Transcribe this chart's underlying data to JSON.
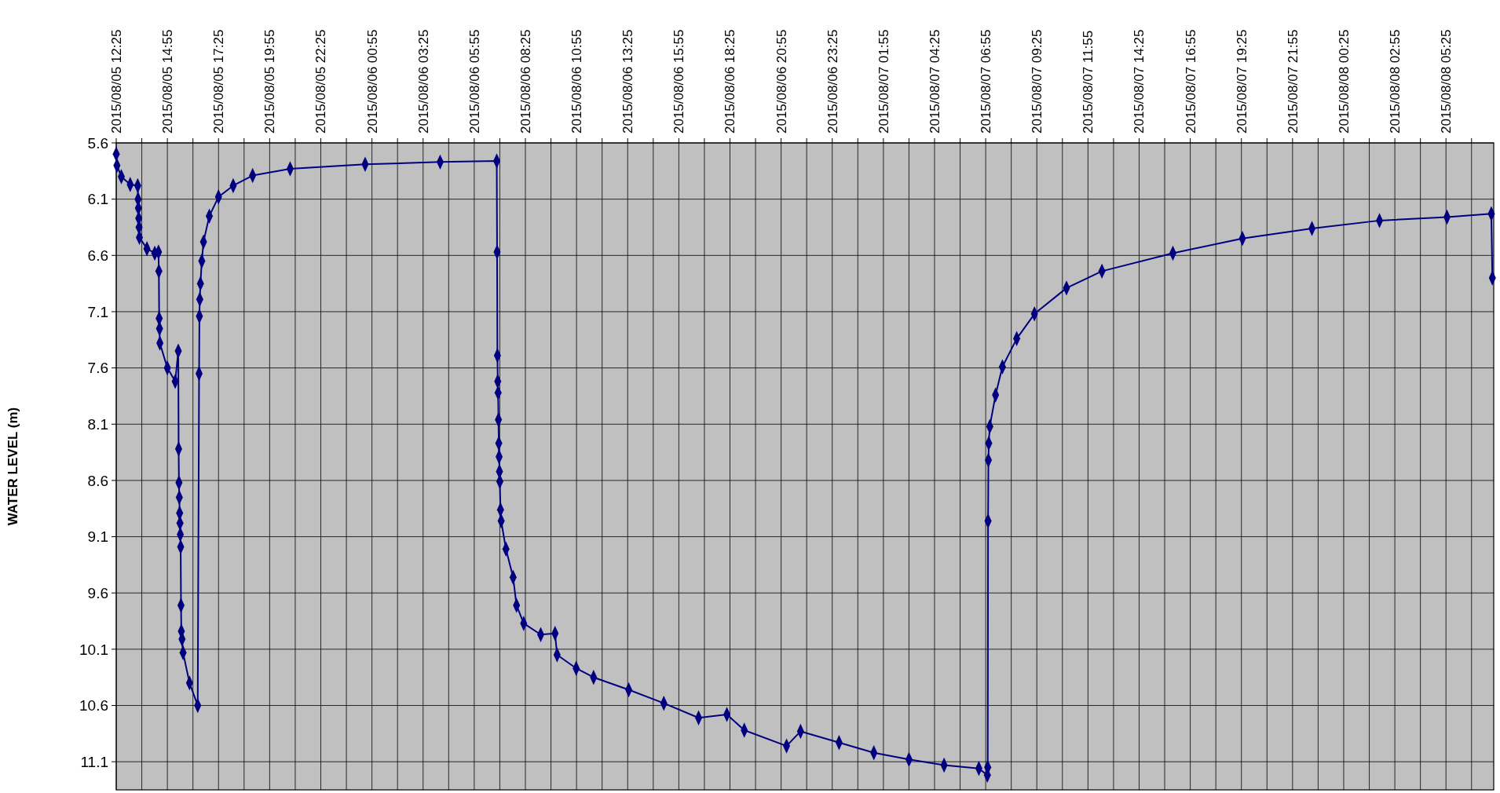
{
  "chart_data": {
    "type": "line",
    "ylabel": "WATER LEVEL (m)",
    "grid": true,
    "marker": "diamond",
    "line_style": "solid",
    "xlim": [
      "2015-08-05T12:25",
      "2015-08-08T07:45"
    ],
    "ylim": [
      11.35,
      5.6
    ],
    "yticks": [
      5.6,
      6.1,
      6.6,
      7.1,
      7.6,
      8.1,
      8.6,
      9.1,
      9.6,
      10.1,
      10.6,
      11.1
    ],
    "xticks": [
      {
        "value": "2015-08-05T12:25",
        "label": "2015/08/05 12:25"
      },
      {
        "value": "2015-08-05T13:40",
        "label": null
      },
      {
        "value": "2015-08-05T14:55",
        "label": "2015/08/05 14:55"
      },
      {
        "value": "2015-08-05T16:10",
        "label": null
      },
      {
        "value": "2015-08-05T17:25",
        "label": "2015/08/05 17:25"
      },
      {
        "value": "2015-08-05T18:40",
        "label": null
      },
      {
        "value": "2015-08-05T19:55",
        "label": "2015/08/05 19:55"
      },
      {
        "value": "2015-08-05T21:10",
        "label": null
      },
      {
        "value": "2015-08-05T22:25",
        "label": "2015/08/05 22:25"
      },
      {
        "value": "2015-08-05T23:40",
        "label": null
      },
      {
        "value": "2015-08-06T00:55",
        "label": "2015/08/06 00:55"
      },
      {
        "value": "2015-08-06T02:10",
        "label": null
      },
      {
        "value": "2015-08-06T03:25",
        "label": "2015/08/06 03:25"
      },
      {
        "value": "2015-08-06T04:40",
        "label": null
      },
      {
        "value": "2015-08-06T05:55",
        "label": "2015/08/06 05:55"
      },
      {
        "value": "2015-08-06T07:10",
        "label": null
      },
      {
        "value": "2015-08-06T08:25",
        "label": "2015/08/06 08:25"
      },
      {
        "value": "2015-08-06T09:40",
        "label": null
      },
      {
        "value": "2015-08-06T10:55",
        "label": "2015/08/06 10:55"
      },
      {
        "value": "2015-08-06T12:10",
        "label": null
      },
      {
        "value": "2015-08-06T13:25",
        "label": "2015/08/06 13:25"
      },
      {
        "value": "2015-08-06T14:40",
        "label": null
      },
      {
        "value": "2015-08-06T15:55",
        "label": "2015/08/06 15:55"
      },
      {
        "value": "2015-08-06T17:10",
        "label": null
      },
      {
        "value": "2015-08-06T18:25",
        "label": "2015/08/06 18:25"
      },
      {
        "value": "2015-08-06T19:40",
        "label": null
      },
      {
        "value": "2015-08-06T20:55",
        "label": "2015/08/06 20:55"
      },
      {
        "value": "2015-08-06T22:10",
        "label": null
      },
      {
        "value": "2015-08-06T23:25",
        "label": "2015/08/06 23:25"
      },
      {
        "value": "2015-08-07T00:40",
        "label": null
      },
      {
        "value": "2015-08-07T01:55",
        "label": "2015/08/07 01:55"
      },
      {
        "value": "2015-08-07T03:10",
        "label": null
      },
      {
        "value": "2015-08-07T04:25",
        "label": "2015/08/07 04:25"
      },
      {
        "value": "2015-08-07T05:40",
        "label": null
      },
      {
        "value": "2015-08-07T06:55",
        "label": "2015/08/07 06:55"
      },
      {
        "value": "2015-08-07T08:10",
        "label": null
      },
      {
        "value": "2015-08-07T09:25",
        "label": "2015/08/07 09:25"
      },
      {
        "value": "2015-08-07T10:40",
        "label": null
      },
      {
        "value": "2015-08-07T11:55",
        "label": "2015/08/07 11:55"
      },
      {
        "value": "2015-08-07T13:10",
        "label": null
      },
      {
        "value": "2015-08-07T14:25",
        "label": "2015/08/07 14:25"
      },
      {
        "value": "2015-08-07T15:40",
        "label": null
      },
      {
        "value": "2015-08-07T16:55",
        "label": "2015/08/07 16:55"
      },
      {
        "value": "2015-08-07T18:10",
        "label": null
      },
      {
        "value": "2015-08-07T19:25",
        "label": "2015/08/07 19:25"
      },
      {
        "value": "2015-08-07T20:40",
        "label": null
      },
      {
        "value": "2015-08-07T21:55",
        "label": "2015/08/07 21:55"
      },
      {
        "value": "2015-08-07T23:10",
        "label": null
      },
      {
        "value": "2015-08-08T00:25",
        "label": "2015/08/08 00:25"
      },
      {
        "value": "2015-08-08T01:40",
        "label": null
      },
      {
        "value": "2015-08-08T02:55",
        "label": "2015/08/08 02:55"
      },
      {
        "value": "2015-08-08T04:10",
        "label": null
      },
      {
        "value": "2015-08-08T05:25",
        "label": "2015/08/08 05:25"
      },
      {
        "value": "2015-08-08T06:40",
        "label": null
      }
    ],
    "series": [
      {
        "color": "#000080",
        "x": [
          "2015-08-05T12:25",
          "2015-08-05T12:27",
          "2015-08-05T12:40",
          "2015-08-05T13:06",
          "2015-08-05T13:28",
          "2015-08-05T13:29",
          "2015-08-05T13:30",
          "2015-08-05T13:31",
          "2015-08-05T13:32",
          "2015-08-05T13:33",
          "2015-08-05T13:55",
          "2015-08-05T14:18",
          "2015-08-05T14:29",
          "2015-08-05T14:30",
          "2015-08-05T14:31",
          "2015-08-05T14:32",
          "2015-08-05T14:33",
          "2015-08-05T14:55",
          "2015-08-05T15:18",
          "2015-08-05T15:27",
          "2015-08-05T15:28",
          "2015-08-05T15:29",
          "2015-08-05T15:30",
          "2015-08-05T15:31",
          "2015-08-05T15:32",
          "2015-08-05T15:33",
          "2015-08-05T15:34",
          "2015-08-05T15:35",
          "2015-08-05T15:36",
          "2015-08-05T15:38",
          "2015-08-05T15:41",
          "2015-08-05T16:00",
          "2015-08-05T16:24",
          "2015-08-05T16:28",
          "2015-08-05T16:29",
          "2015-08-05T16:30",
          "2015-08-05T16:32",
          "2015-08-05T16:36",
          "2015-08-05T16:41",
          "2015-08-05T16:58",
          "2015-08-05T17:25",
          "2015-08-05T18:08",
          "2015-08-05T19:05",
          "2015-08-05T20:55",
          "2015-08-06T00:35",
          "2015-08-06T04:15",
          "2015-08-06T07:01",
          "2015-08-06T07:02",
          "2015-08-06T07:03",
          "2015-08-06T07:04",
          "2015-08-06T07:05",
          "2015-08-06T07:06",
          "2015-08-06T07:07",
          "2015-08-06T07:08",
          "2015-08-06T07:09",
          "2015-08-06T07:10",
          "2015-08-06T07:12",
          "2015-08-06T07:14",
          "2015-08-06T07:28",
          "2015-08-06T07:49",
          "2015-08-06T07:59",
          "2015-08-06T08:20",
          "2015-08-06T09:10",
          "2015-08-06T09:52",
          "2015-08-06T09:58",
          "2015-08-06T10:54",
          "2015-08-06T11:45",
          "2015-08-06T13:28",
          "2015-08-06T15:11",
          "2015-08-06T16:53",
          "2015-08-06T18:16",
          "2015-08-06T19:07",
          "2015-08-06T21:11",
          "2015-08-06T21:52",
          "2015-08-06T23:45",
          "2015-08-07T01:27",
          "2015-08-07T03:10",
          "2015-08-07T04:53",
          "2015-08-07T06:35",
          "2015-08-07T07:00",
          "2015-08-07T07:01",
          "2015-08-07T07:02",
          "2015-08-07T07:03",
          "2015-08-07T07:04",
          "2015-08-07T07:07",
          "2015-08-07T07:24",
          "2015-08-07T07:44",
          "2015-08-07T08:26",
          "2015-08-07T09:18",
          "2015-08-07T10:52",
          "2015-08-07T12:36",
          "2015-08-07T16:04",
          "2015-08-07T19:28",
          "2015-08-07T22:52",
          "2015-08-08T02:10",
          "2015-08-08T05:28",
          "2015-08-08T07:38",
          "2015-08-08T07:41"
        ],
        "values": [
          5.7,
          5.8,
          5.9,
          5.97,
          5.98,
          6.1,
          6.18,
          6.27,
          6.35,
          6.44,
          6.54,
          6.58,
          6.57,
          6.74,
          7.16,
          7.25,
          7.38,
          7.6,
          7.72,
          7.45,
          8.32,
          8.62,
          8.75,
          8.89,
          8.98,
          9.08,
          9.19,
          9.71,
          9.94,
          10.01,
          10.13,
          10.4,
          10.6,
          7.65,
          7.14,
          6.99,
          6.85,
          6.65,
          6.48,
          6.25,
          6.08,
          5.98,
          5.89,
          5.83,
          5.79,
          5.77,
          5.76,
          6.57,
          7.49,
          7.72,
          7.82,
          8.06,
          8.27,
          8.39,
          8.52,
          8.61,
          8.86,
          8.96,
          9.21,
          9.46,
          9.71,
          9.87,
          9.97,
          9.96,
          10.15,
          10.27,
          10.35,
          10.46,
          10.58,
          10.71,
          10.68,
          10.82,
          10.96,
          10.83,
          10.93,
          11.02,
          11.08,
          11.13,
          11.16,
          11.22,
          11.15,
          8.96,
          8.42,
          8.27,
          8.12,
          7.84,
          7.59,
          7.34,
          7.12,
          6.89,
          6.74,
          6.58,
          6.45,
          6.36,
          6.29,
          6.26,
          6.23,
          6.8
        ]
      }
    ]
  }
}
